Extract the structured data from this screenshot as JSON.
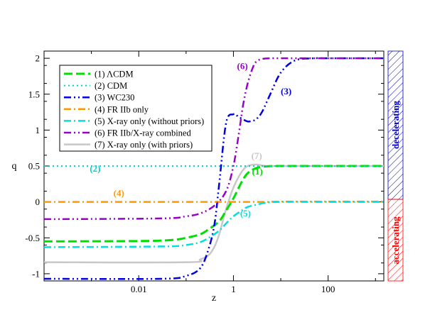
{
  "chart_data": {
    "type": "line",
    "xscale": "log",
    "xlabel": "z",
    "ylabel": "q",
    "xlim": [
      0.0001,
      1500
    ],
    "ylim": [
      -1.1,
      2.1
    ],
    "xticks": [
      {
        "value": 0.01,
        "label": "0.01"
      },
      {
        "value": 1,
        "label": "1"
      },
      {
        "value": 100,
        "label": "100"
      }
    ],
    "yticks": [
      {
        "value": -1,
        "label": "-1"
      },
      {
        "value": -0.5,
        "label": "-0.5"
      },
      {
        "value": 0,
        "label": "0"
      },
      {
        "value": 0.5,
        "label": "0.5"
      },
      {
        "value": 1,
        "label": "1"
      },
      {
        "value": 1.5,
        "label": "1.5"
      },
      {
        "value": 2,
        "label": "2"
      }
    ],
    "series": [
      {
        "id": "s1",
        "name": "(1) ΛCDM",
        "color": "#00e000",
        "dash": "12,5",
        "width": 3,
        "x": [
          0.0001,
          0.01,
          0.05,
          0.1,
          0.2,
          0.3,
          0.5,
          0.7,
          1,
          1.5,
          2,
          3,
          5,
          10,
          100,
          1500
        ],
        "y": [
          -0.55,
          -0.545,
          -0.53,
          -0.5,
          -0.45,
          -0.38,
          -0.27,
          -0.12,
          0.05,
          0.28,
          0.4,
          0.47,
          0.495,
          0.5,
          0.5,
          0.5
        ]
      },
      {
        "id": "s2",
        "name": "(2) CDM",
        "color": "#00d0d0",
        "dash": "2,4",
        "width": 2,
        "x": [
          0.0001,
          1500
        ],
        "y": [
          0.5,
          0.5
        ]
      },
      {
        "id": "s3",
        "name": "(3) WC230",
        "color": "#0000e0",
        "dash": "10,4,2,4,2,4",
        "width": 2.5,
        "x": [
          0.0001,
          0.03,
          0.1,
          0.2,
          0.3,
          0.4,
          0.5,
          0.7,
          1,
          1.2,
          1.5,
          2,
          2.5,
          3,
          4,
          6,
          10,
          20,
          50,
          100,
          1500
        ],
        "y": [
          -1.07,
          -1.07,
          -1.03,
          -0.92,
          -0.65,
          -0.3,
          0.25,
          1.1,
          1.22,
          1.2,
          1.16,
          1.12,
          1.13,
          1.15,
          1.25,
          1.5,
          1.8,
          1.97,
          2.0,
          2.0,
          2.0
        ]
      },
      {
        "id": "s4",
        "name": "(4) FR IIb only",
        "color": "#ff9900",
        "dash": "10,4,2,4",
        "width": 2.5,
        "x": [
          0.0001,
          0.1,
          0.5,
          1,
          2,
          5,
          10,
          100,
          1500
        ],
        "y": [
          0.0,
          0.0,
          0.0,
          0.0,
          0.0,
          0.0,
          0.005,
          0.005,
          0.005
        ]
      },
      {
        "id": "s5",
        "name": "(5) X-ray only (without priors)",
        "color": "#00e0e0",
        "dash": "10,4,2,4",
        "width": 2.5,
        "x": [
          0.0001,
          0.03,
          0.1,
          0.2,
          0.3,
          0.5,
          0.7,
          1,
          1.5,
          2,
          3,
          5,
          10,
          100,
          1500
        ],
        "y": [
          -0.63,
          -0.62,
          -0.6,
          -0.56,
          -0.5,
          -0.4,
          -0.3,
          -0.2,
          -0.12,
          -0.07,
          -0.04,
          -0.01,
          0.0,
          0.0,
          0.0
        ]
      },
      {
        "id": "s6",
        "name": "(6) FR IIb/X-ray combined",
        "color": "#9900cc",
        "dash": "10,4,2,4,2,4",
        "width": 2.5,
        "x": [
          0.0001,
          0.03,
          0.1,
          0.2,
          0.4,
          0.7,
          1,
          1.3,
          1.6,
          2,
          2.5,
          3,
          4,
          6,
          10,
          100,
          1500
        ],
        "y": [
          -0.24,
          -0.23,
          -0.2,
          -0.16,
          -0.05,
          0.15,
          0.5,
          0.95,
          1.35,
          1.65,
          1.85,
          1.95,
          1.99,
          2.0,
          2.0,
          2.0,
          2.0
        ]
      },
      {
        "id": "s7",
        "name": "(7) X-ray only (with priors)",
        "color": "#c8c8c8",
        "dash": "",
        "width": 2.5,
        "x": [
          0.0001,
          0.1,
          0.2,
          0.3,
          0.4,
          0.5,
          0.7,
          1,
          1.5,
          2,
          3,
          5,
          10,
          100,
          1500
        ],
        "y": [
          -0.84,
          -0.84,
          -0.8,
          -0.74,
          -0.62,
          -0.45,
          -0.1,
          0.2,
          0.42,
          0.5,
          0.52,
          0.5,
          0.5,
          0.5,
          0.5
        ]
      }
    ],
    "annotations": [
      {
        "id": "a1",
        "text": "(1)",
        "x": 3.2,
        "y": 0.38,
        "color": "#00e000"
      },
      {
        "id": "a2",
        "text": "(2)",
        "x": 0.0012,
        "y": 0.42,
        "color": "#00d0d0"
      },
      {
        "id": "a3",
        "text": "(3)",
        "x": 13,
        "y": 1.5,
        "color": "#0000e0"
      },
      {
        "id": "a4",
        "text": "(4)",
        "x": 0.0038,
        "y": 0.08,
        "color": "#ff9900"
      },
      {
        "id": "a5",
        "text": "(5)",
        "x": 1.8,
        "y": -0.2,
        "color": "#00e0e0"
      },
      {
        "id": "a6",
        "text": "(6)",
        "x": 1.55,
        "y": 1.85,
        "color": "#9900cc"
      },
      {
        "id": "a7",
        "text": "(7)",
        "x": 3.1,
        "y": 0.6,
        "color": "#c8c8c8"
      }
    ],
    "regions": [
      {
        "id": "decelerating",
        "label": "decelerating",
        "y_from": 0,
        "y_to": 2.1,
        "color": "#0000cc"
      },
      {
        "id": "accelerating",
        "label": "accelerating",
        "y_from": -1.1,
        "y_to": 0,
        "color": "#ff0000"
      }
    ],
    "legend_position": "top-left"
  }
}
